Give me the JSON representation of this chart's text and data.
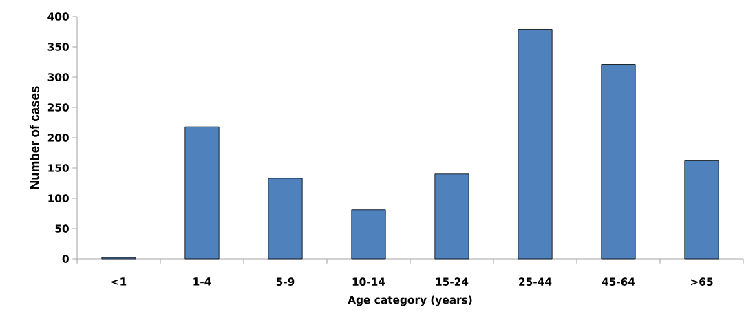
{
  "chart_data": {
    "type": "bar",
    "xlabel": "Age category (years)",
    "ylabel": "Number of cases",
    "categories": [
      "<1",
      "1-4",
      "5-9",
      "10-14",
      "15-24",
      "25-44",
      "45-64",
      ">65"
    ],
    "values": [
      2,
      218,
      133,
      81,
      140,
      379,
      321,
      162
    ],
    "color": "#4f81bd",
    "ylim": [
      0,
      400
    ],
    "yticks": [
      0,
      50,
      100,
      150,
      200,
      250,
      300,
      350,
      400
    ],
    "grid": false
  }
}
